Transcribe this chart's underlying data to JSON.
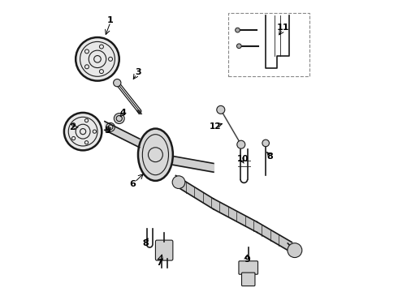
{
  "title": "",
  "background_color": "#ffffff",
  "line_color": "#1a1a1a",
  "label_color": "#000000",
  "figsize": [
    4.9,
    3.6
  ],
  "dpi": 100
}
